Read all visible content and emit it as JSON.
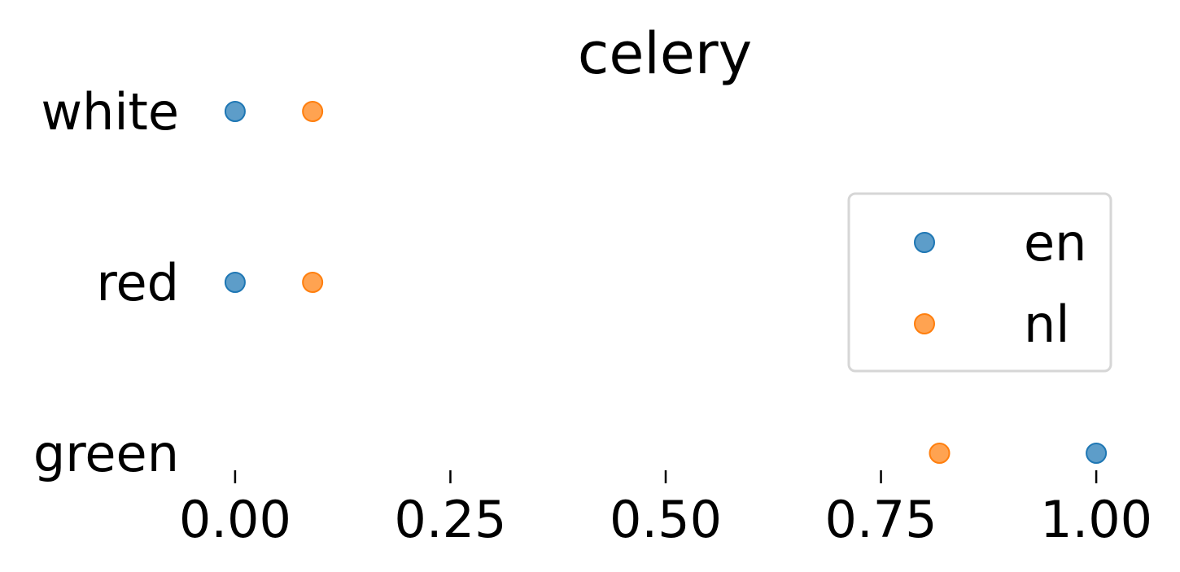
{
  "chart_data": {
    "type": "scatter",
    "title": "celery",
    "xlabel": "",
    "ylabel": "",
    "categories": [
      "white",
      "red",
      "green"
    ],
    "x_ticks": [
      "0.00",
      "0.25",
      "0.50",
      "0.75",
      "1.00"
    ],
    "xlim": [
      -0.05,
      1.05
    ],
    "grid": false,
    "legend_position": "right",
    "series": [
      {
        "name": "en",
        "color": "#1f77b4",
        "values": [
          0.0,
          0.0,
          1.0
        ]
      },
      {
        "name": "nl",
        "color": "#ff7f0e",
        "values": [
          0.09,
          0.09,
          0.818
        ]
      }
    ]
  }
}
